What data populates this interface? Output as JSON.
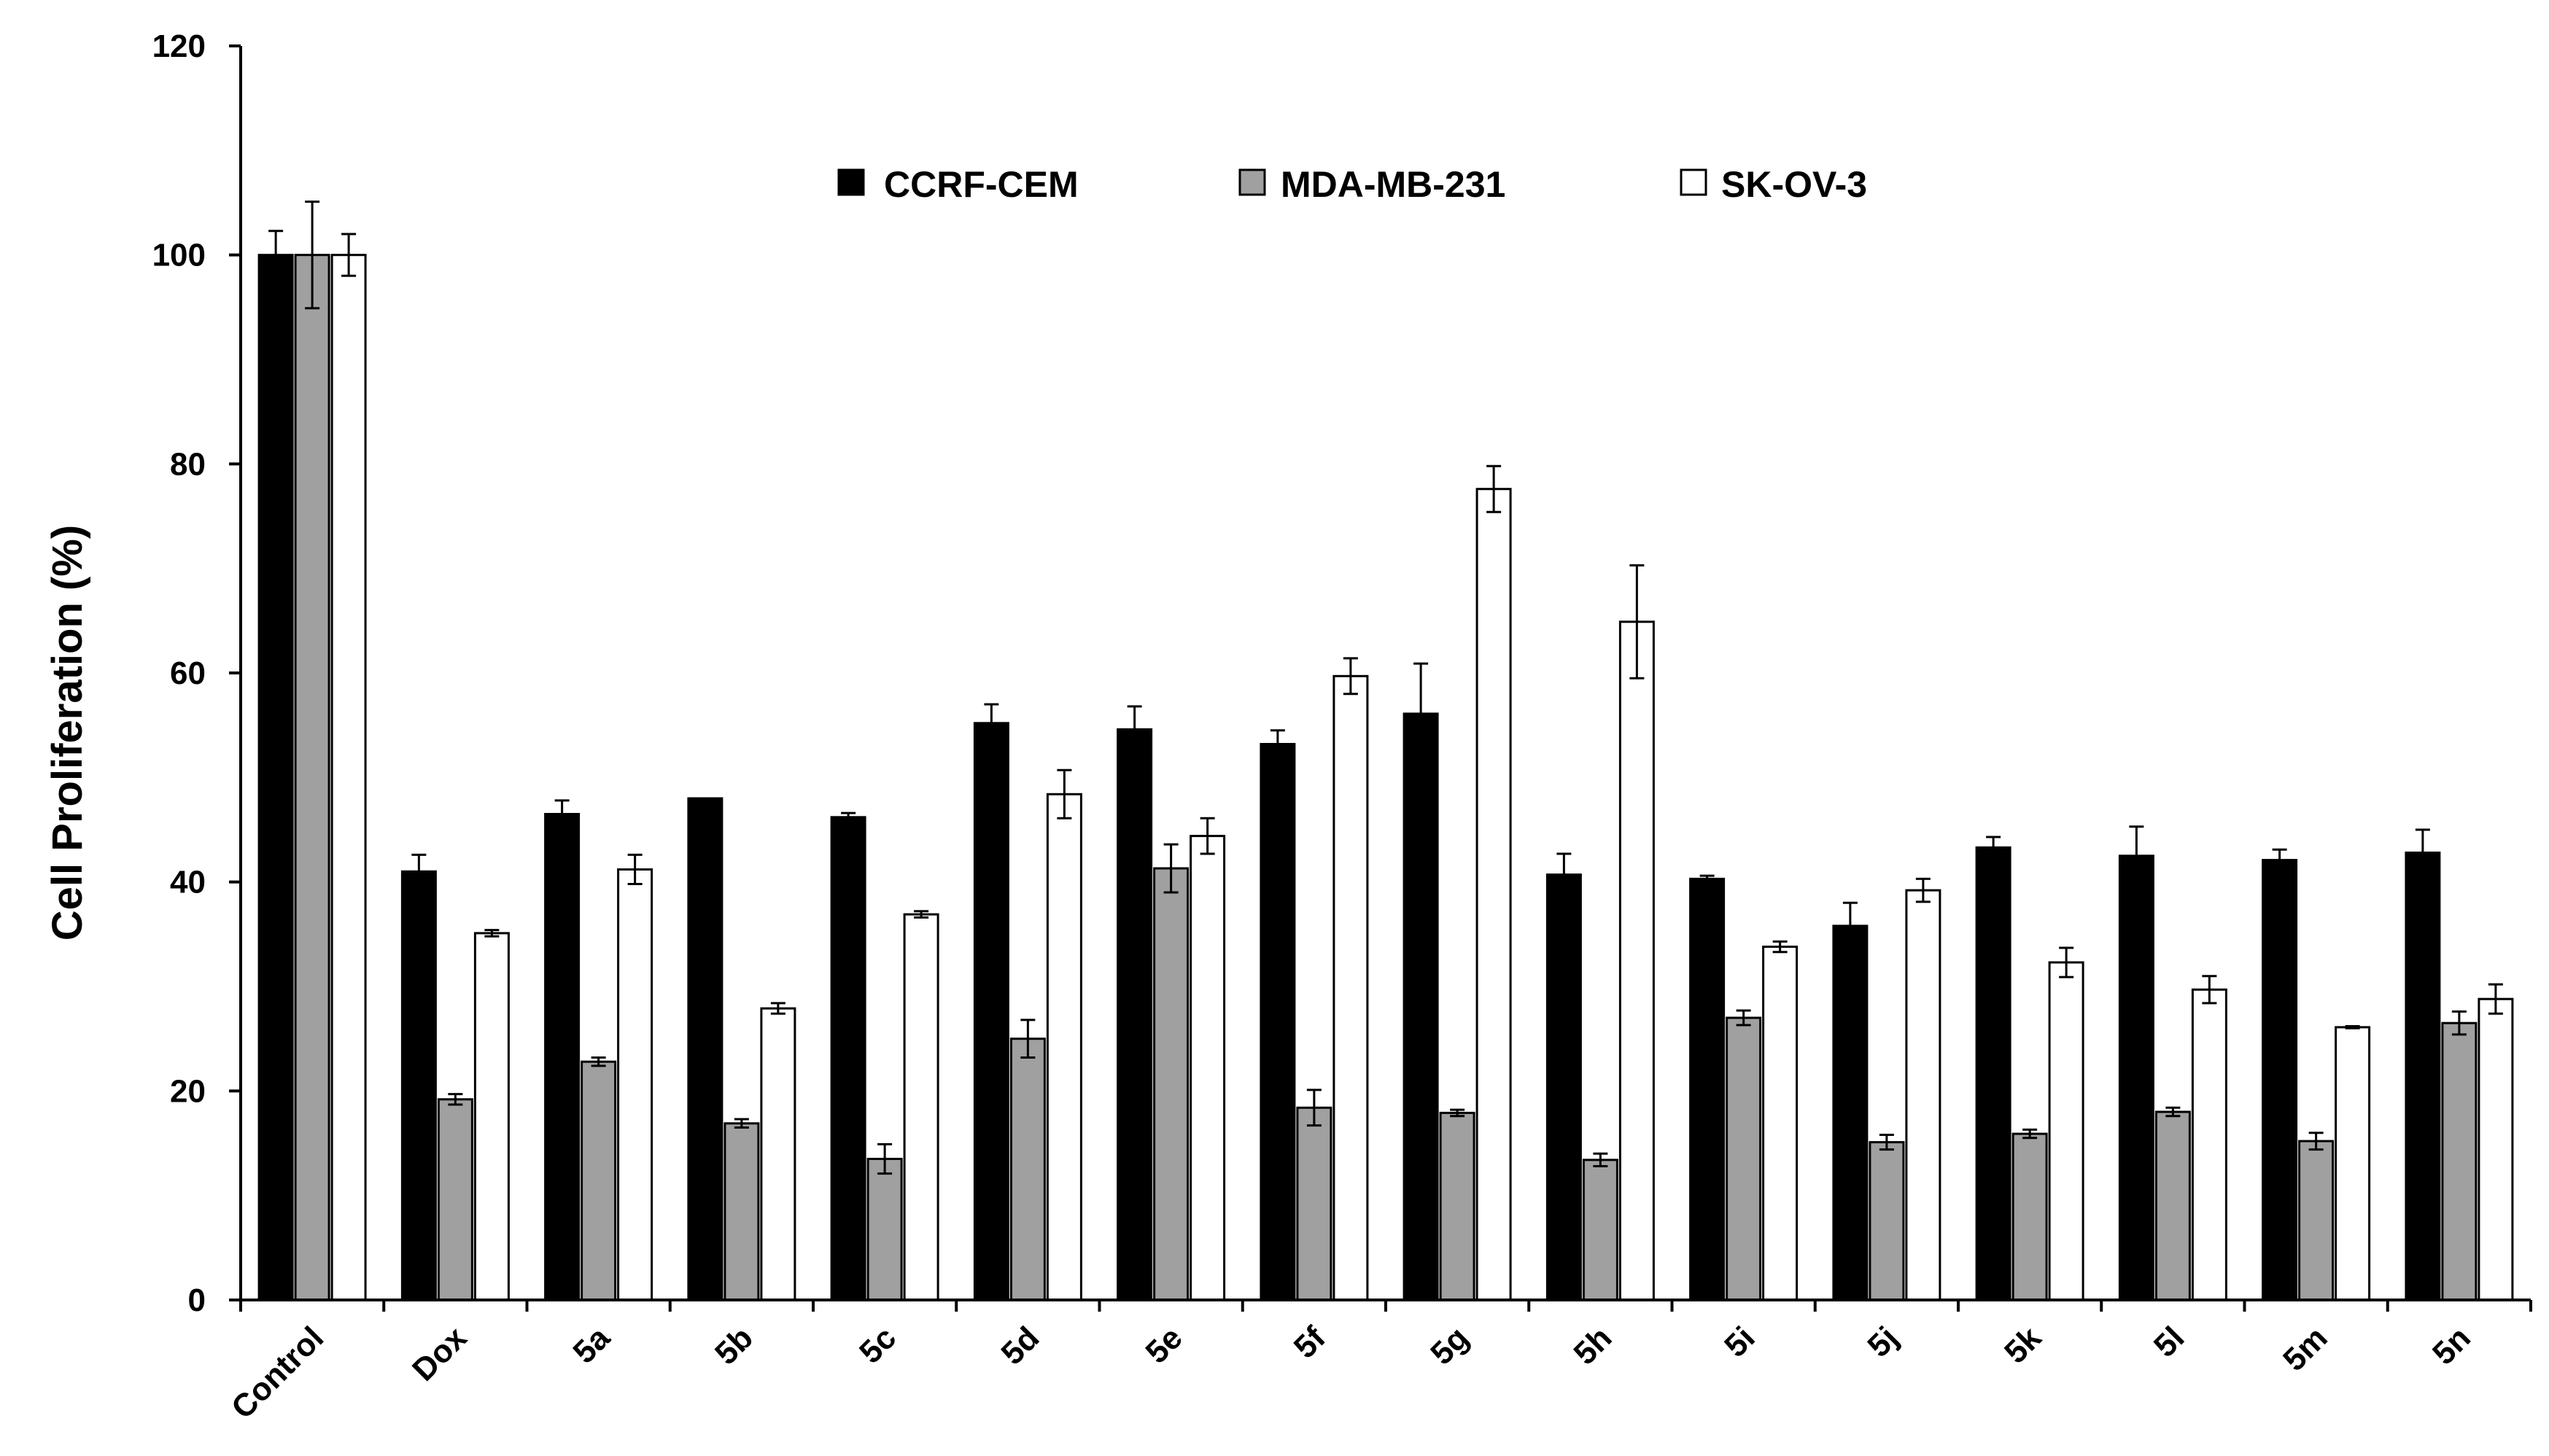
{
  "chart_data": {
    "type": "bar",
    "title": "",
    "xlabel": "",
    "ylabel": "Cell Proliferation (%)",
    "ylim": [
      0,
      120
    ],
    "yticks": [
      0,
      20,
      40,
      60,
      80,
      100,
      120
    ],
    "categories": [
      "Control",
      "Dox",
      "5a",
      "5b",
      "5c",
      "5d",
      "5e",
      "5f",
      "5g",
      "5h",
      "5i",
      "5j",
      "5k",
      "5l",
      "5m",
      "5n"
    ],
    "legend_position": "top-center",
    "series": [
      {
        "name": "CCRF-CEM",
        "color": "#000000",
        "values": [
          100,
          41,
          46.5,
          48,
          46.2,
          55.2,
          54.6,
          53.2,
          56.1,
          40.7,
          40.3,
          35.8,
          43.3,
          42.5,
          42.1,
          42.8
        ],
        "errors": [
          2.3,
          1.6,
          1.3,
          0,
          0.4,
          1.8,
          2.2,
          1.3,
          4.8,
          2,
          0.3,
          2.2,
          1,
          2.8,
          1,
          2.2
        ]
      },
      {
        "name": "MDA-MB-231",
        "color": "#a0a0a0",
        "values": [
          100,
          19.2,
          22.8,
          16.9,
          13.5,
          25,
          41.3,
          18.4,
          17.9,
          13.4,
          27,
          15.1,
          15.9,
          18,
          15.2,
          26.5
        ],
        "errors": [
          5.1,
          0.5,
          0.4,
          0.4,
          1.4,
          1.8,
          2.3,
          1.7,
          0.3,
          0.6,
          0.7,
          0.7,
          0.4,
          0.4,
          0.8,
          1.1
        ]
      },
      {
        "name": "SK-OV-3",
        "color": "#ffffff",
        "values": [
          100,
          35.1,
          41.2,
          27.9,
          36.9,
          48.4,
          44.4,
          59.7,
          77.6,
          64.9,
          33.8,
          39.2,
          32.3,
          29.7,
          26.1,
          28.8
        ],
        "errors": [
          2,
          0.3,
          1.4,
          0.5,
          0.3,
          2.3,
          1.7,
          1.7,
          2.2,
          5.4,
          0.5,
          1.1,
          1.4,
          1.3,
          0.1,
          1.4
        ]
      }
    ]
  }
}
